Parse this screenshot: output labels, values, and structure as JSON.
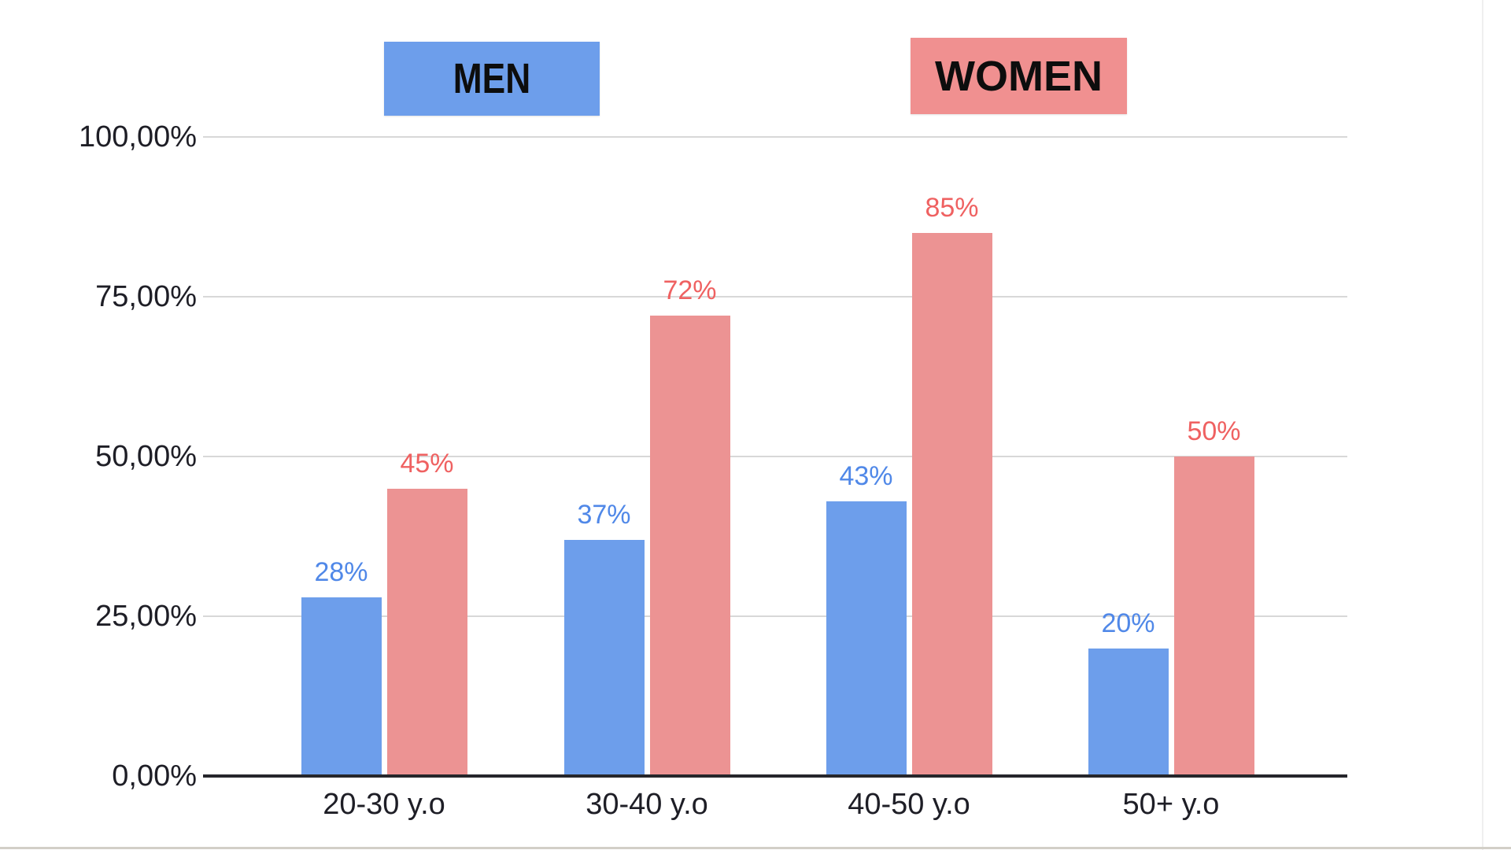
{
  "legend": {
    "men_label": "MEN",
    "women_label": "WOMEN",
    "men_color": "#6d9eeb",
    "women_color": "#f09090"
  },
  "chart_data": {
    "type": "bar",
    "title": "",
    "xlabel": "",
    "ylabel": "",
    "categories": [
      "20-30 y.o",
      "30-40 y.o",
      "40-50 y.o",
      "50+ y.o"
    ],
    "series": [
      {
        "name": "MEN",
        "values": [
          28,
          37,
          43,
          20
        ],
        "bar_color": "#6d9eeb",
        "label_color": "#5088e8"
      },
      {
        "name": "WOMEN",
        "values": [
          45,
          72,
          85,
          50
        ],
        "bar_color": "#ec9393",
        "label_color": "#ef6161"
      }
    ],
    "value_suffix": "%",
    "yticks": [
      {
        "value": 100,
        "label": "100,00%"
      },
      {
        "value": 75,
        "label": "75,00%"
      },
      {
        "value": 50,
        "label": "50,00%"
      },
      {
        "value": 25,
        "label": "25,00%"
      },
      {
        "value": 0,
        "label": "0,00%"
      }
    ],
    "ylim": [
      0,
      100
    ],
    "grid": true,
    "legend_position": "top"
  },
  "colors": {
    "grid": "#d8d8d8",
    "axis": "#26262b",
    "axis_text": "#1e1e26",
    "bottom_strip": "#d2cfc7",
    "right_edge": "#efefef",
    "background": "#ffffff"
  }
}
